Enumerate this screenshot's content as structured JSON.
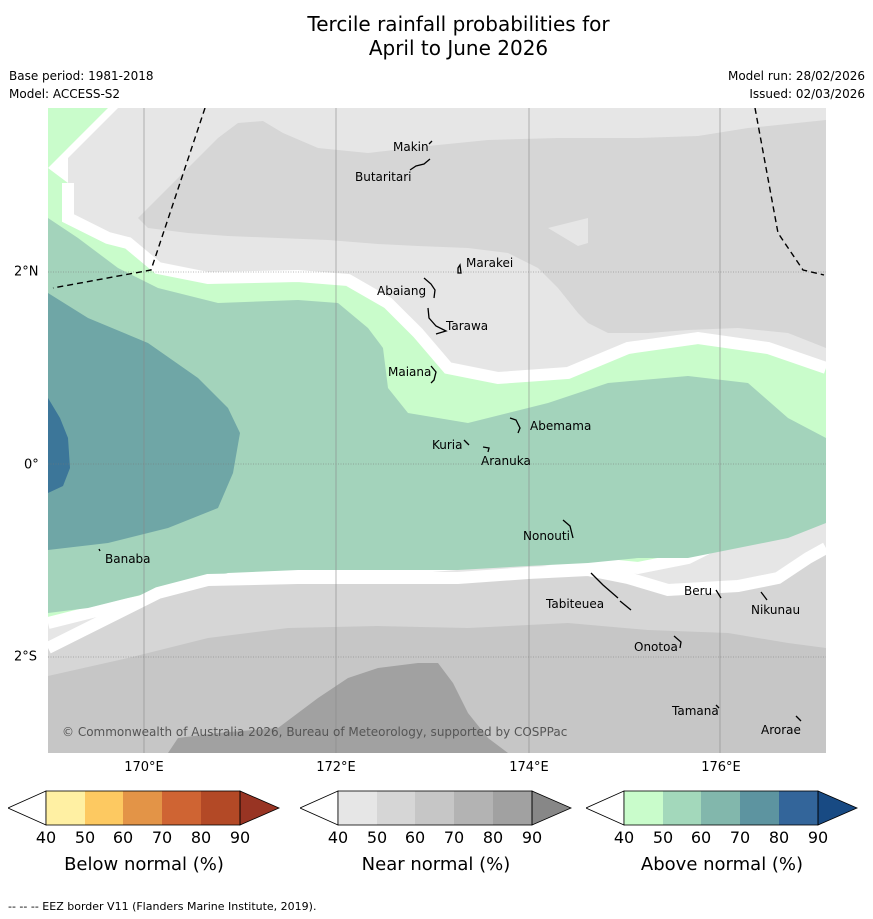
{
  "title_line1": "Tercile rainfall probabilities for",
  "title_line2": "April to June 2026",
  "base_period": "Base period: 1981-2018",
  "model": "Model: ACCESS-S2",
  "model_run": "Model run: 28/02/2026",
  "issued": "Issued: 02/03/2026",
  "latitude_labels": [
    "2°N",
    "0°",
    "2°S"
  ],
  "longitude_labels": [
    "170°E",
    "172°E",
    "174°E",
    "176°E"
  ],
  "places": [
    "Makin",
    "Butaritari",
    "Marakei",
    "Abaiang",
    "Tarawa",
    "Maiana",
    "Abemama",
    "Kuria",
    "Aranuka",
    "Banaba",
    "Nonouti",
    "Beru",
    "Tabiteuea",
    "Nikunau",
    "Onotoa",
    "Tamana",
    "Arorae"
  ],
  "copyright": "© Commonwealth of Australia 2026, Bureau of Meteorology, supported by COSPPac",
  "legends": [
    {
      "name": "Below normal (%)",
      "ticks": [
        "40",
        "50",
        "60",
        "70",
        "80",
        "90"
      ],
      "colors": [
        "#fff0a3",
        "#fdc961",
        "#e39447",
        "#cf6433",
        "#b34926",
        "#983423"
      ]
    },
    {
      "name": "Near normal (%)",
      "ticks": [
        "40",
        "50",
        "60",
        "70",
        "80",
        "90"
      ],
      "colors": [
        "#e6e6e6",
        "#d6d6d6",
        "#c6c6c6",
        "#b3b3b3",
        "#a1a1a1",
        "#878787"
      ]
    },
    {
      "name": "Above normal (%)",
      "ticks": [
        "40",
        "50",
        "60",
        "70",
        "80",
        "90"
      ],
      "colors": [
        "#c9fccb",
        "#a3d8bb",
        "#82b7ac",
        "#5d94a0",
        "#33659a",
        "#184a83"
      ]
    }
  ],
  "footer": "--  --  -- EEZ border V11 (Flanders Marine Institute, 2019)."
}
